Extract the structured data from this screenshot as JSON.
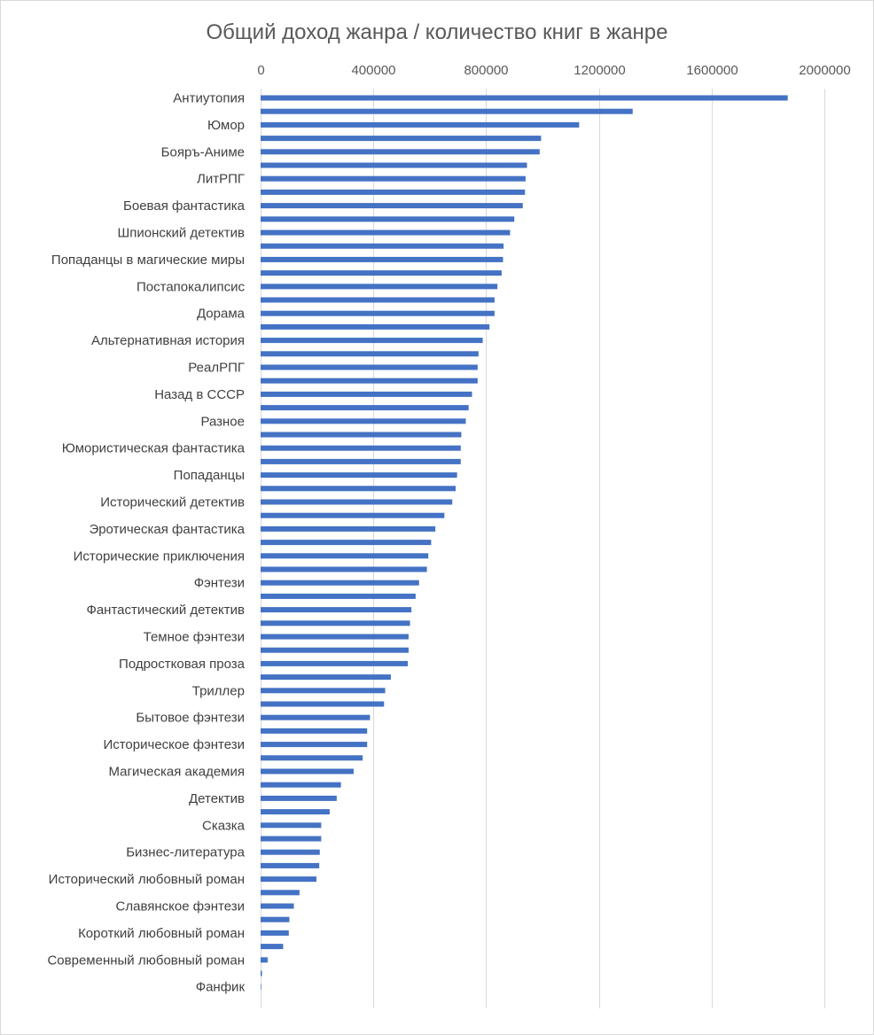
{
  "chart_data": {
    "type": "bar",
    "orientation": "horizontal",
    "title": "Общий доход жанра / количество книг в жанре",
    "xlabel": "",
    "ylabel": "",
    "xlim": [
      0,
      2000000
    ],
    "x_ticks": [
      0,
      400000,
      800000,
      1200000,
      1600000,
      2000000
    ],
    "x_axis_position": "top",
    "grid": "vertical",
    "legend": "none",
    "colors": {
      "bar": "#4472c4",
      "grid": "#d9d9d9",
      "text": "#595959"
    },
    "categories": [
      "Антиутопия",
      "",
      "Юмор",
      "",
      "Бояръ-Аниме",
      "",
      "ЛитРПГ",
      "",
      "Боевая фантастика",
      "",
      "Шпионский детектив",
      "",
      "Попаданцы в магические миры",
      "",
      "Постапокалипсис",
      "",
      "Дорама",
      "",
      "Альтернативная история",
      "",
      "РеалРПГ",
      "",
      "Назад в СССР",
      "",
      "Разное",
      "",
      "Юмористическая фантастика",
      "",
      "Попаданцы",
      "",
      "Исторический детектив",
      "",
      "Эротическая фантастика",
      "",
      "Исторические приключения",
      "",
      "Фэнтези",
      "",
      "Фантастический детектив",
      "",
      "Темное фэнтези",
      "",
      "Подростковая проза",
      "",
      "Триллер",
      "",
      "Бытовое фэнтези",
      "",
      "Историческое фэнтези",
      "",
      "Магическая академия",
      "",
      "Детектив",
      "",
      "Сказка",
      "",
      "Бизнес-литература",
      "",
      "Исторический любовный роман",
      "",
      "Славянское фэнтези",
      "",
      "Короткий любовный роман",
      "",
      "Современный любовный роман",
      "",
      "Фанфик"
    ],
    "values": [
      1870000,
      1320000,
      1130000,
      995000,
      990000,
      945000,
      940000,
      938000,
      930000,
      900000,
      885000,
      862000,
      860000,
      855000,
      840000,
      830000,
      830000,
      812000,
      788000,
      773000,
      770000,
      770000,
      750000,
      738000,
      728000,
      712000,
      710000,
      710000,
      697000,
      692000,
      680000,
      652000,
      620000,
      605000,
      595000,
      590000,
      562000,
      550000,
      535000,
      530000,
      525000,
      525000,
      522000,
      462000,
      442000,
      438000,
      388000,
      378000,
      378000,
      362000,
      330000,
      285000,
      270000,
      245000,
      215000,
      215000,
      210000,
      208000,
      198000,
      138000,
      118000,
      102000,
      100000,
      80000,
      25000,
      5000,
      2000
    ]
  }
}
